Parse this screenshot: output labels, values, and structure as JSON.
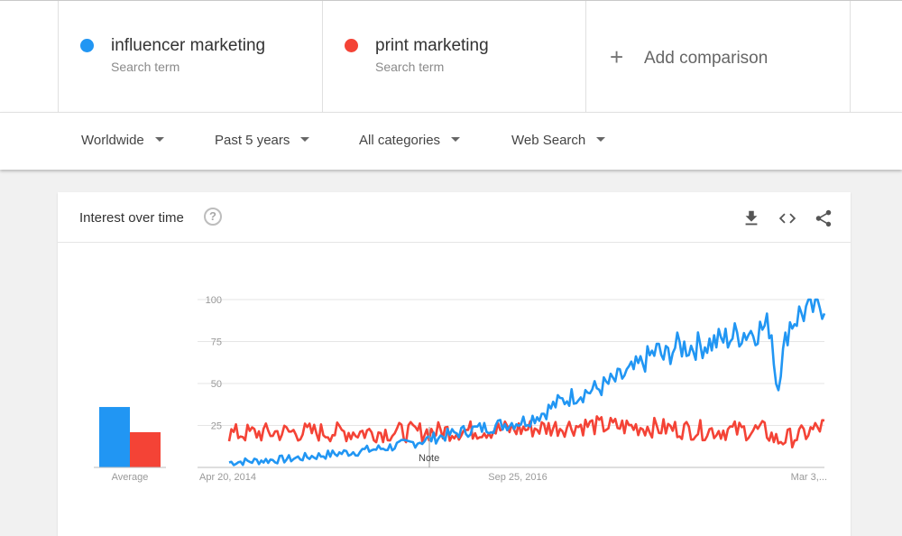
{
  "terms": [
    {
      "name": "influencer marketing",
      "sub": "Search term",
      "color": "#2196f3"
    },
    {
      "name": "print marketing",
      "sub": "Search term",
      "color": "#f44336"
    }
  ],
  "add_comparison": {
    "icon": "plus-icon",
    "label": "Add comparison"
  },
  "filters": [
    {
      "label": "Worldwide"
    },
    {
      "label": "Past 5 years"
    },
    {
      "label": "All categories"
    },
    {
      "label": "Web Search"
    }
  ],
  "card": {
    "title": "Interest over time",
    "help_icon": "?",
    "icons": [
      "download-icon",
      "embed-icon",
      "share-icon"
    ]
  },
  "chart_data": {
    "type": "line",
    "ylim": [
      0,
      100
    ],
    "y_ticks": [
      "100",
      "75",
      "50",
      "25"
    ],
    "x_ticks": [
      "Apr 20, 2014",
      "Sep 25, 2016",
      "Mar 3,..."
    ],
    "note_label": "Note",
    "average": {
      "label": "Average",
      "values": [
        36,
        21
      ]
    },
    "series": [
      {
        "color": "#2196f3",
        "keypoints": [
          [
            0,
            3
          ],
          [
            0.05,
            4
          ],
          [
            0.1,
            5
          ],
          [
            0.15,
            7
          ],
          [
            0.2,
            9
          ],
          [
            0.25,
            11
          ],
          [
            0.3,
            14
          ],
          [
            0.35,
            18
          ],
          [
            0.4,
            22
          ],
          [
            0.45,
            25
          ],
          [
            0.5,
            28
          ],
          [
            0.53,
            33
          ],
          [
            0.55,
            38
          ],
          [
            0.58,
            43
          ],
          [
            0.62,
            47
          ],
          [
            0.65,
            52
          ],
          [
            0.68,
            58
          ],
          [
            0.7,
            64
          ],
          [
            0.72,
            70
          ],
          [
            0.73,
            65
          ],
          [
            0.75,
            72
          ],
          [
            0.78,
            72
          ],
          [
            0.82,
            75
          ],
          [
            0.86,
            80
          ],
          [
            0.89,
            82
          ],
          [
            0.91,
            85
          ],
          [
            0.92,
            47
          ],
          [
            0.94,
            85
          ],
          [
            0.96,
            92
          ],
          [
            0.98,
            95
          ],
          [
            1,
            98
          ]
        ]
      },
      {
        "color": "#f44336",
        "keypoints": [
          [
            0,
            20
          ],
          [
            0.1,
            21
          ],
          [
            0.2,
            21
          ],
          [
            0.3,
            21
          ],
          [
            0.4,
            22
          ],
          [
            0.5,
            23
          ],
          [
            0.55,
            24
          ],
          [
            0.6,
            25
          ],
          [
            0.7,
            24
          ],
          [
            0.8,
            22
          ],
          [
            0.9,
            22
          ],
          [
            0.92,
            16
          ],
          [
            0.96,
            19
          ],
          [
            1,
            25
          ]
        ]
      }
    ]
  }
}
